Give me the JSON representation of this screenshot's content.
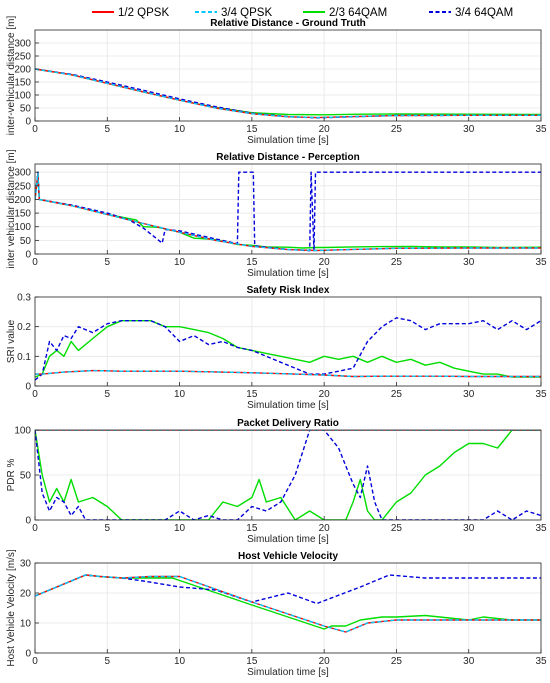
{
  "figure": {
    "legend": {
      "placement": "top-center",
      "entries": [
        {
          "label": "1/2 QPSK",
          "color": "#ff0000",
          "dash": "solid"
        },
        {
          "label": "3/4 QPSK",
          "color": "#00c8ff",
          "dash": "dashed"
        },
        {
          "label": "2/3 64QAM",
          "color": "#00dd00",
          "dash": "solid"
        },
        {
          "label": "3/4 64QAM",
          "color": "#0000dd",
          "dash": "dashed"
        }
      ]
    }
  },
  "chart_data": [
    {
      "type": "line",
      "title": "Relative Distance - Ground Truth",
      "xlabel": "Simulation time [s]",
      "ylabel": "inter-vehicular distance [m]",
      "xlim": [
        0,
        35
      ],
      "ylim": [
        0,
        350
      ],
      "xticks": [
        0,
        5,
        10,
        15,
        20,
        25,
        30,
        35
      ],
      "yticks": [
        0,
        50,
        100,
        150,
        200,
        250,
        300
      ],
      "grid": true,
      "series": [
        {
          "name": "1/2 QPSK",
          "x": [
            0,
            2.5,
            5,
            7.5,
            10,
            12.5,
            15,
            17.5,
            19.5,
            22,
            25,
            30,
            35
          ],
          "y": [
            200,
            178,
            145,
            112,
            80,
            50,
            28,
            16,
            13,
            17,
            21,
            22,
            22
          ]
        },
        {
          "name": "3/4 QPSK",
          "x": [
            0,
            2.5,
            5,
            7.5,
            10,
            12.5,
            15,
            17.5,
            19.5,
            22,
            25,
            30,
            35
          ],
          "y": [
            200,
            178,
            145,
            112,
            80,
            50,
            28,
            16,
            13,
            17,
            21,
            22,
            22
          ]
        },
        {
          "name": "2/3 64QAM",
          "x": [
            0,
            2.5,
            5,
            7.5,
            10,
            12.5,
            15,
            17.5,
            20,
            22.5,
            25,
            30,
            35
          ],
          "y": [
            200,
            178,
            145,
            112,
            80,
            52,
            32,
            25,
            24,
            26,
            27,
            26,
            25
          ]
        },
        {
          "name": "3/4 64QAM",
          "x": [
            0,
            2.5,
            5,
            7.5,
            10,
            12.5,
            15,
            17.5,
            19.5,
            22,
            25,
            30,
            35
          ],
          "y": [
            200,
            180,
            150,
            118,
            85,
            55,
            30,
            17,
            12,
            16,
            21,
            22,
            22
          ]
        }
      ]
    },
    {
      "type": "line",
      "title": "Relative Distance - Perception",
      "xlabel": "Simulation time [s]",
      "ylabel": "inter vehicular distance [m]",
      "xlim": [
        0,
        35
      ],
      "ylim": [
        0,
        330
      ],
      "xticks": [
        0,
        5,
        10,
        15,
        20,
        25,
        30,
        35
      ],
      "yticks": [
        0,
        50,
        100,
        150,
        200,
        250,
        300
      ],
      "grid": true,
      "series": [
        {
          "name": "1/2 QPSK",
          "x": [
            0,
            0.2,
            0.3,
            2.5,
            5,
            7.5,
            10,
            12.5,
            15,
            17.5,
            19.5,
            22,
            25,
            30,
            35
          ],
          "y": [
            200,
            295,
            200,
            178,
            145,
            112,
            80,
            50,
            28,
            16,
            13,
            17,
            21,
            22,
            22
          ]
        },
        {
          "name": "3/4 QPSK",
          "x": [
            0,
            0.2,
            0.3,
            2.5,
            5,
            7.5,
            10,
            12.5,
            15,
            17.5,
            19.5,
            22,
            25,
            30,
            35
          ],
          "y": [
            200,
            295,
            200,
            178,
            145,
            112,
            80,
            50,
            28,
            16,
            13,
            17,
            21,
            22,
            22
          ]
        },
        {
          "name": "2/3 64QAM",
          "x": [
            0,
            0.2,
            0.3,
            2.5,
            5,
            7,
            7.5,
            8.5,
            10,
            11,
            12,
            12.5,
            14,
            15,
            16,
            17.5,
            18.5,
            19.5,
            20,
            22,
            24,
            26,
            28,
            30,
            32,
            35
          ],
          "y": [
            200,
            295,
            200,
            178,
            145,
            125,
            100,
            98,
            80,
            58,
            55,
            52,
            35,
            32,
            26,
            25,
            22,
            24,
            24,
            26,
            27,
            28,
            26,
            26,
            24,
            25
          ]
        },
        {
          "name": "3/4 64QAM",
          "x": [
            0,
            0.2,
            0.3,
            2.5,
            5,
            6.5,
            7.5,
            8.8,
            9,
            10,
            12.5,
            14,
            14.1,
            15.1,
            15.2,
            17.5,
            19,
            19.1,
            19.3,
            19.4,
            35
          ],
          "y": [
            200,
            300,
            200,
            180,
            150,
            125,
            95,
            40,
            90,
            85,
            55,
            38,
            300,
            300,
            30,
            17,
            12,
            300,
            10,
            300,
            300
          ]
        }
      ]
    },
    {
      "type": "line",
      "title": "Safety Risk Index",
      "xlabel": "Simulation time [s]",
      "ylabel": "SRI value",
      "xlim": [
        0,
        35
      ],
      "ylim": [
        0,
        0.3
      ],
      "xticks": [
        0,
        5,
        10,
        15,
        20,
        25,
        30,
        35
      ],
      "yticks": [
        0,
        0.1,
        0.2,
        0.3
      ],
      "grid": true,
      "series": [
        {
          "name": "1/2 QPSK",
          "x": [
            0,
            0.5,
            2,
            4,
            6,
            8,
            10,
            12,
            14,
            16,
            18,
            20,
            22,
            24,
            26,
            28,
            30,
            32,
            35
          ],
          "y": [
            0.04,
            0.04,
            0.047,
            0.052,
            0.05,
            0.05,
            0.05,
            0.048,
            0.046,
            0.043,
            0.04,
            0.037,
            0.032,
            0.033,
            0.033,
            0.033,
            0.032,
            0.032,
            0.032
          ]
        },
        {
          "name": "3/4 QPSK",
          "x": [
            0,
            0.5,
            2,
            4,
            6,
            8,
            10,
            12,
            14,
            16,
            18,
            20,
            22,
            24,
            26,
            28,
            30,
            32,
            35
          ],
          "y": [
            0.04,
            0.04,
            0.047,
            0.052,
            0.05,
            0.05,
            0.05,
            0.048,
            0.046,
            0.043,
            0.04,
            0.037,
            0.032,
            0.033,
            0.033,
            0.033,
            0.032,
            0.032,
            0.032
          ]
        },
        {
          "name": "2/3 64QAM",
          "x": [
            0,
            0.5,
            1,
            1.5,
            2,
            2.5,
            3,
            4,
            5,
            6,
            7,
            8,
            9,
            10,
            11,
            12,
            13,
            14,
            15,
            16,
            17,
            18,
            19,
            20,
            21,
            22,
            23,
            24,
            25,
            26,
            27,
            28,
            29,
            30,
            31,
            32,
            33,
            35
          ],
          "y": [
            0.03,
            0.04,
            0.1,
            0.12,
            0.1,
            0.15,
            0.12,
            0.16,
            0.2,
            0.22,
            0.22,
            0.22,
            0.2,
            0.2,
            0.19,
            0.18,
            0.16,
            0.13,
            0.12,
            0.11,
            0.1,
            0.09,
            0.08,
            0.1,
            0.09,
            0.1,
            0.08,
            0.1,
            0.08,
            0.09,
            0.07,
            0.08,
            0.06,
            0.05,
            0.04,
            0.04,
            0.03,
            0.03
          ]
        },
        {
          "name": "3/4 64QAM",
          "x": [
            0,
            0.5,
            1,
            1.5,
            2,
            2.5,
            3,
            4,
            5,
            6,
            7,
            8,
            9,
            10,
            11,
            12,
            13,
            14,
            15,
            16,
            17,
            18,
            19,
            20,
            21,
            22,
            23,
            24,
            25,
            26,
            27,
            28,
            29,
            30,
            31,
            32,
            33,
            34,
            35
          ],
          "y": [
            0.02,
            0.04,
            0.15,
            0.12,
            0.17,
            0.16,
            0.2,
            0.18,
            0.21,
            0.22,
            0.22,
            0.22,
            0.2,
            0.15,
            0.17,
            0.14,
            0.15,
            0.13,
            0.12,
            0.1,
            0.08,
            0.06,
            0.04,
            0.04,
            0.05,
            0.06,
            0.15,
            0.2,
            0.23,
            0.22,
            0.19,
            0.21,
            0.21,
            0.21,
            0.22,
            0.19,
            0.22,
            0.19,
            0.22
          ]
        }
      ]
    },
    {
      "type": "line",
      "title": "Packet Delivery Ratio",
      "xlabel": "Simulation time [s]",
      "ylabel": "PDR %",
      "xlim": [
        0,
        35
      ],
      "ylim": [
        0,
        100
      ],
      "xticks": [
        0,
        5,
        10,
        15,
        20,
        25,
        30,
        35
      ],
      "yticks": [
        0,
        50,
        100
      ],
      "grid": true,
      "series": [
        {
          "name": "1/2 QPSK",
          "x": [
            0,
            35
          ],
          "y": [
            100,
            100
          ]
        },
        {
          "name": "3/4 QPSK",
          "x": [
            0,
            35
          ],
          "y": [
            100,
            100
          ]
        },
        {
          "name": "2/3 64QAM",
          "x": [
            0,
            0.5,
            1,
            1.5,
            2,
            2.5,
            3,
            4,
            5,
            6,
            7,
            8,
            9,
            10,
            11,
            12,
            12.5,
            13,
            14,
            15,
            15.5,
            16,
            17,
            18,
            19,
            20,
            21,
            21.5,
            22,
            22.5,
            23,
            23.5,
            24,
            25,
            26,
            27,
            28,
            29,
            30,
            31,
            32,
            32.5,
            33,
            35
          ],
          "y": [
            100,
            50,
            20,
            35,
            20,
            45,
            20,
            25,
            15,
            0,
            0,
            0,
            0,
            0,
            0,
            0,
            10,
            20,
            15,
            25,
            45,
            20,
            25,
            0,
            10,
            0,
            0,
            0,
            20,
            45,
            10,
            0,
            0,
            20,
            30,
            50,
            60,
            75,
            85,
            85,
            80,
            90,
            100,
            100
          ]
        },
        {
          "name": "3/4 64QAM",
          "x": [
            0,
            0.5,
            1,
            1.5,
            2,
            2.5,
            3,
            3.5,
            4,
            5,
            6,
            7,
            8,
            9,
            10,
            11,
            12,
            13,
            14,
            15,
            16,
            17,
            17.5,
            18,
            18.5,
            19,
            20,
            21,
            21.5,
            22,
            22.5,
            23,
            23.5,
            24,
            25,
            26,
            27,
            28,
            29,
            30,
            31,
            32,
            33,
            34,
            35
          ],
          "y": [
            100,
            30,
            10,
            25,
            20,
            5,
            15,
            0,
            0,
            0,
            0,
            0,
            0,
            0,
            10,
            0,
            5,
            0,
            0,
            15,
            10,
            20,
            35,
            50,
            75,
            100,
            100,
            80,
            60,
            40,
            25,
            60,
            20,
            0,
            0,
            0,
            0,
            0,
            0,
            0,
            0,
            10,
            0,
            10,
            5
          ]
        }
      ]
    },
    {
      "type": "line",
      "title": "Host Vehicle Velocity",
      "xlabel": "Simulation time [s]",
      "ylabel": "Host Vehicle Velocity [m/s]",
      "xlim": [
        0,
        35
      ],
      "ylim": [
        0,
        30
      ],
      "xticks": [
        0,
        5,
        10,
        15,
        20,
        25,
        30,
        35
      ],
      "yticks": [
        0,
        10,
        20,
        30
      ],
      "grid": true,
      "series": [
        {
          "name": "1/2 QPSK",
          "x": [
            0,
            1,
            3.5,
            4.5,
            6,
            8,
            10,
            15,
            20,
            21.5,
            23,
            25,
            28,
            30,
            35
          ],
          "y": [
            19,
            21,
            26,
            25.5,
            25,
            25.5,
            25.5,
            17,
            9,
            7,
            10,
            11,
            11,
            11,
            11
          ]
        },
        {
          "name": "3/4 QPSK",
          "x": [
            0,
            1,
            3.5,
            4.5,
            6,
            8,
            10,
            15,
            20,
            21.5,
            23,
            25,
            28,
            30,
            35
          ],
          "y": [
            19,
            21,
            26,
            25.5,
            25,
            25.5,
            25.5,
            17,
            9,
            7,
            10,
            11,
            11,
            11,
            11
          ]
        },
        {
          "name": "2/3 64QAM",
          "x": [
            0,
            1,
            3.5,
            4.5,
            6,
            8,
            9.5,
            15,
            20,
            20.5,
            21.5,
            22.5,
            24,
            25,
            27,
            28,
            30,
            31,
            33,
            35
          ],
          "y": [
            19,
            21,
            26,
            25.5,
            25,
            25,
            25,
            16,
            8,
            9,
            9,
            11,
            12,
            12,
            12.5,
            12,
            11,
            12,
            11,
            11
          ]
        },
        {
          "name": "3/4 64QAM",
          "x": [
            0,
            1,
            3.5,
            4.5,
            6,
            7.5,
            10,
            12.5,
            15,
            17.5,
            19.5,
            22.5,
            24.5,
            27,
            30,
            35
          ],
          "y": [
            19,
            21,
            26,
            25.5,
            25,
            24,
            22,
            21,
            17,
            20,
            16.5,
            22,
            26,
            25,
            25,
            25
          ]
        }
      ]
    }
  ]
}
